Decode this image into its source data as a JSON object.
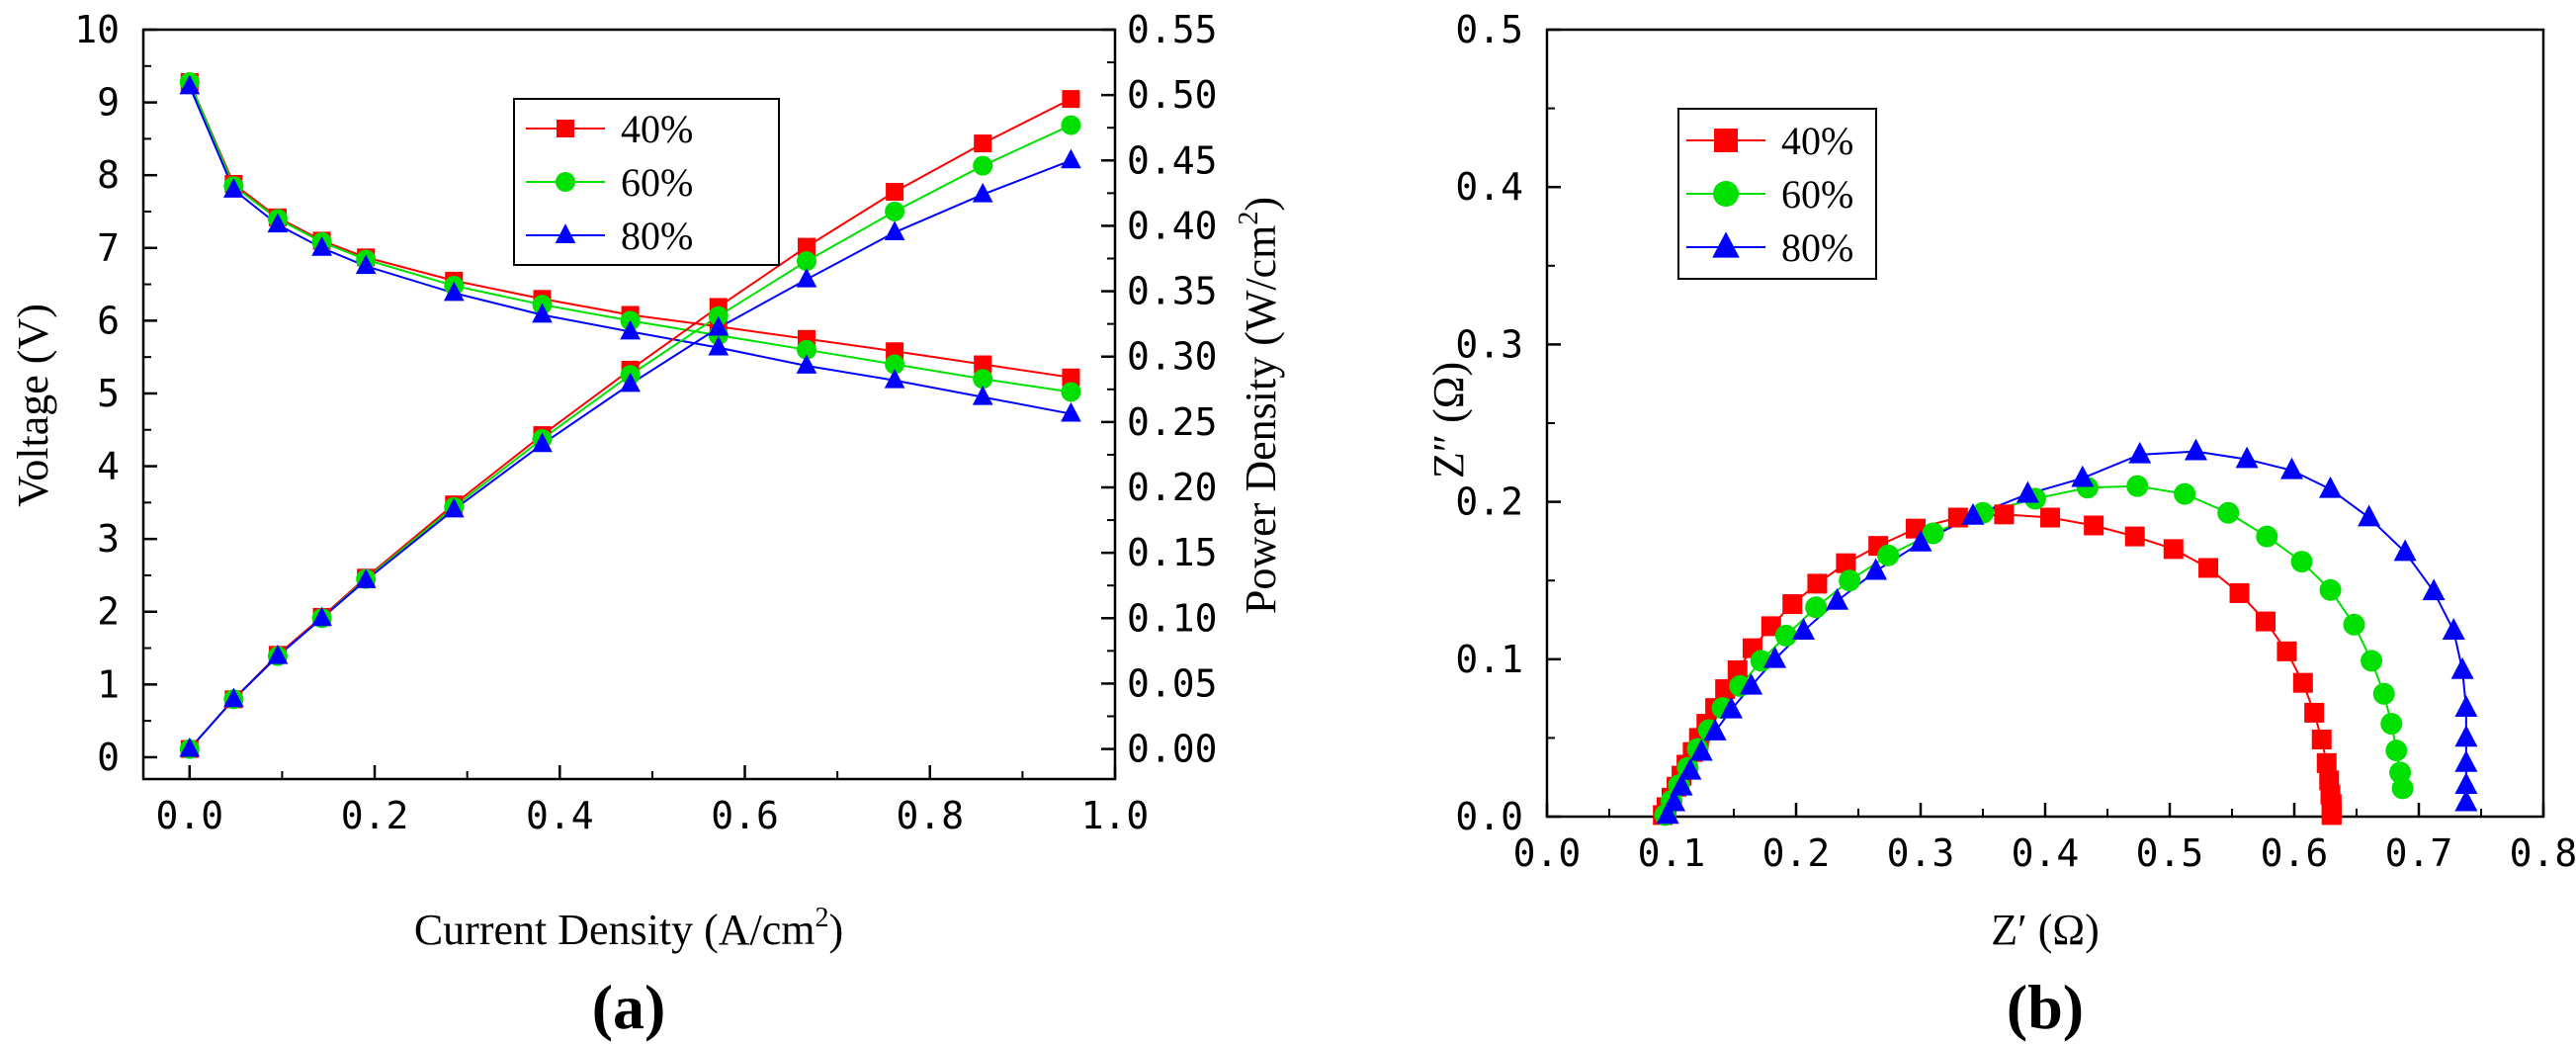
{
  "chart_data": [
    {
      "type": "line",
      "panel_label": "(a)",
      "xlabel": "Current Density (A/cm",
      "xlabel_sup": "2",
      "xlabel_end": ")",
      "ylabel": "Voltage (V)",
      "y2label": "Power Density (W/cm",
      "y2label_sup": "2",
      "y2label_end": ")",
      "xlim": [
        -0.05,
        1.0
      ],
      "ylim": [
        -0.3,
        10.0
      ],
      "y2lim": [
        -0.023,
        0.55
      ],
      "xticks": [
        "0.0",
        "0.2",
        "0.4",
        "0.6",
        "0.8",
        "1.0"
      ],
      "xtick_values": [
        0,
        0.2,
        0.4,
        0.6,
        0.8,
        1.0
      ],
      "yticks": [
        "0",
        "1",
        "2",
        "3",
        "4",
        "5",
        "6",
        "7",
        "8",
        "9",
        "10"
      ],
      "ytick_values": [
        0,
        1,
        2,
        3,
        4,
        5,
        6,
        7,
        8,
        9,
        10
      ],
      "y2ticks": [
        "0.00",
        "0.05",
        "0.10",
        "0.15",
        "0.20",
        "0.25",
        "0.30",
        "0.35",
        "0.40",
        "0.45",
        "0.50",
        "0.55"
      ],
      "y2tick_values": [
        0,
        0.05,
        0.1,
        0.15,
        0.2,
        0.25,
        0.3,
        0.35,
        0.4,
        0.45,
        0.5,
        0.55
      ],
      "legend": [
        "40%",
        "60%",
        "80%"
      ],
      "legend_position": "top-center",
      "x": [
        0,
        0.0476,
        0.0952,
        0.1429,
        0.1905,
        0.2857,
        0.381,
        0.4762,
        0.5714,
        0.6667,
        0.7619,
        0.8571,
        0.9524
      ],
      "series": [
        {
          "name": "40%",
          "axis": "left",
          "color": "#ff0000",
          "marker": "square",
          "values": [
            9.28,
            7.88,
            7.42,
            7.1,
            6.87,
            6.55,
            6.3,
            6.08,
            5.92,
            5.75,
            5.58,
            5.4,
            5.22
          ]
        },
        {
          "name": "60%",
          "axis": "left",
          "color": "#00e000",
          "marker": "circle",
          "values": [
            9.28,
            7.85,
            7.4,
            7.08,
            6.84,
            6.48,
            6.22,
            6.0,
            5.8,
            5.6,
            5.4,
            5.2,
            5.02
          ]
        },
        {
          "name": "80%",
          "axis": "left",
          "color": "#0000ff",
          "marker": "triangle",
          "values": [
            9.22,
            7.8,
            7.32,
            7.0,
            6.75,
            6.38,
            6.08,
            5.85,
            5.63,
            5.38,
            5.18,
            4.95,
            4.72
          ]
        },
        {
          "name": "40%",
          "axis": "right",
          "color": "#ff0000",
          "marker": "square",
          "values": [
            0.0,
            0.038,
            0.072,
            0.101,
            0.131,
            0.187,
            0.24,
            0.29,
            0.338,
            0.384,
            0.426,
            0.463,
            0.497
          ]
        },
        {
          "name": "60%",
          "axis": "right",
          "color": "#00e000",
          "marker": "circle",
          "values": [
            0.0,
            0.038,
            0.071,
            0.1,
            0.13,
            0.185,
            0.237,
            0.286,
            0.331,
            0.373,
            0.411,
            0.446,
            0.477
          ]
        },
        {
          "name": "80%",
          "axis": "right",
          "color": "#0000ff",
          "marker": "triangle",
          "values": [
            0.0,
            0.038,
            0.071,
            0.1,
            0.129,
            0.183,
            0.233,
            0.279,
            0.322,
            0.359,
            0.395,
            0.424,
            0.45
          ]
        }
      ]
    },
    {
      "type": "scatter",
      "panel_label": "(b)",
      "xlabel": "Z′ (Ω)",
      "ylabel": "Z″ (Ω)",
      "xlim": [
        0.0,
        0.8
      ],
      "ylim": [
        0.0,
        0.5
      ],
      "xticks": [
        "0.0",
        "0.1",
        "0.2",
        "0.3",
        "0.4",
        "0.5",
        "0.6",
        "0.7",
        "0.8"
      ],
      "xtick_values": [
        0,
        0.1,
        0.2,
        0.3,
        0.4,
        0.5,
        0.6,
        0.7,
        0.8
      ],
      "yticks": [
        "0.0",
        "0.1",
        "0.2",
        "0.3",
        "0.4",
        "0.5"
      ],
      "ytick_values": [
        0,
        0.1,
        0.2,
        0.3,
        0.4,
        0.5
      ],
      "legend": [
        "40%",
        "60%",
        "80%"
      ],
      "legend_position": "top-left",
      "series": [
        {
          "name": "40%",
          "color": "#ff0000",
          "marker": "square",
          "x": [
            0.093,
            0.096,
            0.1,
            0.104,
            0.108,
            0.112,
            0.117,
            0.122,
            0.128,
            0.135,
            0.143,
            0.153,
            0.165,
            0.18,
            0.197,
            0.217,
            0.24,
            0.266,
            0.296,
            0.33,
            0.367,
            0.404,
            0.439,
            0.472,
            0.503,
            0.531,
            0.556,
            0.577,
            0.594,
            0.607,
            0.616,
            0.622,
            0.626,
            0.628,
            0.629,
            0.63,
            0.63,
            0.63,
            0.63
          ],
          "y": [
            0.001,
            0.006,
            0.012,
            0.019,
            0.026,
            0.033,
            0.041,
            0.05,
            0.059,
            0.069,
            0.081,
            0.093,
            0.107,
            0.121,
            0.135,
            0.148,
            0.161,
            0.172,
            0.183,
            0.19,
            0.192,
            0.19,
            0.185,
            0.178,
            0.17,
            0.158,
            0.142,
            0.124,
            0.105,
            0.085,
            0.066,
            0.049,
            0.034,
            0.023,
            0.014,
            0.008,
            0.004,
            0.002,
            0.001
          ]
        },
        {
          "name": "60%",
          "color": "#00e000",
          "marker": "circle",
          "x": [
            0.095,
            0.1,
            0.106,
            0.113,
            0.121,
            0.13,
            0.141,
            0.155,
            0.172,
            0.192,
            0.216,
            0.243,
            0.274,
            0.31,
            0.35,
            0.392,
            0.434,
            0.474,
            0.512,
            0.547,
            0.578,
            0.606,
            0.629,
            0.648,
            0.662,
            0.672,
            0.678,
            0.682,
            0.685,
            0.687
          ],
          "y": [
            0.001,
            0.01,
            0.02,
            0.031,
            0.043,
            0.055,
            0.069,
            0.083,
            0.099,
            0.115,
            0.133,
            0.15,
            0.166,
            0.18,
            0.193,
            0.202,
            0.209,
            0.21,
            0.205,
            0.193,
            0.178,
            0.162,
            0.144,
            0.122,
            0.099,
            0.078,
            0.059,
            0.042,
            0.028,
            0.018
          ]
        },
        {
          "name": "80%",
          "color": "#0000ff",
          "marker": "triangle",
          "x": [
            0.097,
            0.102,
            0.108,
            0.115,
            0.124,
            0.135,
            0.148,
            0.164,
            0.183,
            0.206,
            0.233,
            0.264,
            0.3,
            0.342,
            0.386,
            0.43,
            0.476,
            0.521,
            0.562,
            0.598,
            0.629,
            0.66,
            0.689,
            0.712,
            0.728,
            0.735,
            0.738,
            0.738,
            0.738,
            0.738,
            0.738
          ],
          "y": [
            0.001,
            0.009,
            0.019,
            0.029,
            0.041,
            0.054,
            0.068,
            0.083,
            0.1,
            0.118,
            0.137,
            0.156,
            0.174,
            0.191,
            0.205,
            0.215,
            0.23,
            0.232,
            0.227,
            0.22,
            0.208,
            0.19,
            0.168,
            0.143,
            0.118,
            0.093,
            0.069,
            0.05,
            0.034,
            0.02,
            0.009
          ]
        }
      ]
    }
  ]
}
